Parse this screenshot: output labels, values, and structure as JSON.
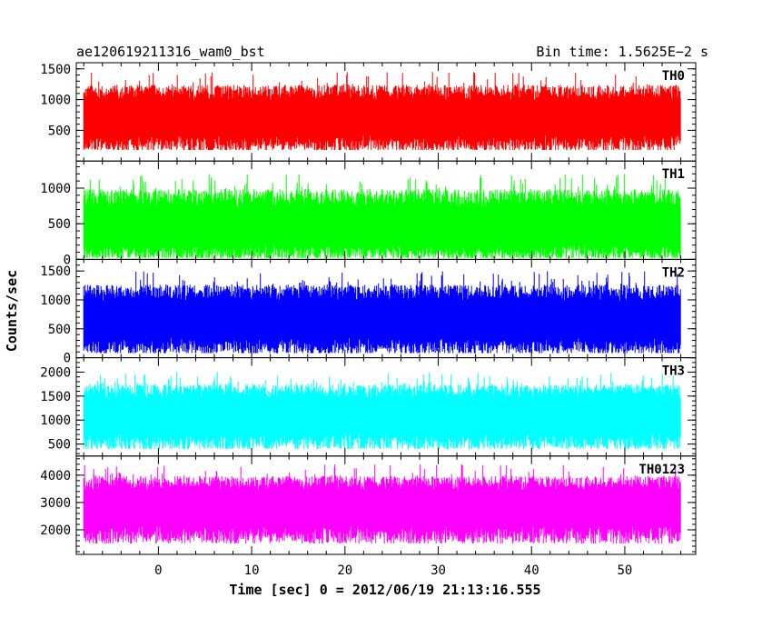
{
  "chart_data": {
    "type": "line",
    "title_left": "ae120619211316_wam0_bst",
    "title_right": "Bin time: 1.5625E−2 s",
    "xlabel": "Time [sec] 0 = 2012/06/19 21:13:16.555",
    "ylabel": "Counts/sec",
    "xlim": [
      -8.8,
      57.6
    ],
    "x_data_range": [
      -8.0,
      56.0
    ],
    "x_ticks": [
      0,
      10,
      20,
      30,
      40,
      50
    ],
    "x_tick_labels": [
      "0",
      "10",
      "20",
      "30",
      "40",
      "50"
    ],
    "grid": false,
    "panels": [
      {
        "name": "TH0",
        "color": "#ff0000",
        "ylim": [
          0,
          1600
        ],
        "y_ticks": [
          500,
          1000,
          1500
        ],
        "y_tick_labels": [
          "500",
          "1000",
          "1500"
        ],
        "typical_range": [
          180,
          1450
        ],
        "mean": 700
      },
      {
        "name": "TH1",
        "color": "#00ff00",
        "ylim": [
          0,
          1380
        ],
        "y_ticks": [
          0,
          500,
          1000
        ],
        "y_tick_labels": [
          "0",
          "500",
          "1000"
        ],
        "typical_range": [
          20,
          1200
        ],
        "mean": 430
      },
      {
        "name": "TH2",
        "color": "#0000ff",
        "ylim": [
          0,
          1700
        ],
        "y_ticks": [
          0,
          500,
          1000,
          1500
        ],
        "y_tick_labels": [
          "0",
          "500",
          "1000",
          "1500"
        ],
        "typical_range": [
          80,
          1500
        ],
        "mean": 650
      },
      {
        "name": "TH3",
        "color": "#00ffff",
        "ylim": [
          250,
          2300
        ],
        "y_ticks": [
          500,
          1000,
          1500,
          2000
        ],
        "y_tick_labels": [
          "500",
          "1000",
          "1500",
          "2000"
        ],
        "typical_range": [
          400,
          2000
        ],
        "mean": 1100
      },
      {
        "name": "TH0123",
        "color": "#ff00ff",
        "ylim": [
          1100,
          4700
        ],
        "y_ticks": [
          2000,
          3000,
          4000
        ],
        "y_tick_labels": [
          "2000",
          "3000",
          "4000"
        ],
        "typical_range": [
          1500,
          4400
        ],
        "mean": 2850
      }
    ]
  }
}
